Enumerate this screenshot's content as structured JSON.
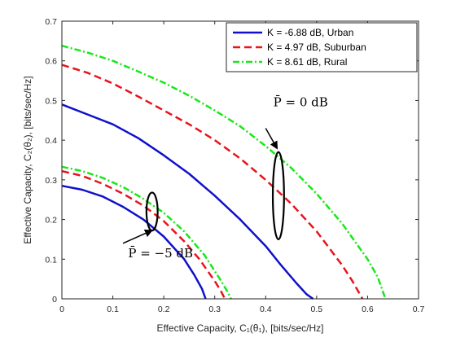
{
  "chart_data": {
    "type": "line",
    "xlabel": "Effective Capacity, C₁(θ₁),  [bits/sec/Hz]",
    "ylabel": "Effective Capacity, C₂(θ₂),  [bits/sec/Hz]",
    "xlim": [
      0,
      0.7
    ],
    "ylim": [
      0,
      0.7
    ],
    "xticks": [
      "0",
      "0.1",
      "0.2",
      "0.3",
      "0.4",
      "0.5",
      "0.6",
      "0.7"
    ],
    "yticks": [
      "0",
      "0.1",
      "0.2",
      "0.3",
      "0.4",
      "0.5",
      "0.6",
      "0.7"
    ],
    "grid": false,
    "legend_position": "top-right",
    "series": [
      {
        "name": "K = -6.88 dB, Urban",
        "color": "#1010cc",
        "style": "solid",
        "curves": [
          {
            "x": [
              0,
              0.04,
              0.08,
              0.12,
              0.16,
              0.2,
              0.24,
              0.26,
              0.275,
              0.282
            ],
            "y": [
              0.285,
              0.275,
              0.258,
              0.232,
              0.2,
              0.157,
              0.1,
              0.06,
              0.025,
              0.0
            ]
          },
          {
            "x": [
              0,
              0.05,
              0.1,
              0.15,
              0.2,
              0.25,
              0.3,
              0.35,
              0.4,
              0.43,
              0.46,
              0.48,
              0.493
            ],
            "y": [
              0.49,
              0.465,
              0.44,
              0.405,
              0.362,
              0.315,
              0.26,
              0.2,
              0.133,
              0.085,
              0.04,
              0.012,
              0.0
            ]
          }
        ]
      },
      {
        "name": "K = 4.97 dB, Suburban",
        "color": "#e8141c",
        "style": "dashed",
        "curves": [
          {
            "x": [
              0,
              0.04,
              0.08,
              0.12,
              0.16,
              0.2,
              0.24,
              0.27,
              0.3,
              0.312,
              0.32
            ],
            "y": [
              0.322,
              0.31,
              0.29,
              0.265,
              0.235,
              0.196,
              0.145,
              0.1,
              0.045,
              0.02,
              0.0
            ]
          },
          {
            "x": [
              0,
              0.05,
              0.1,
              0.15,
              0.2,
              0.25,
              0.3,
              0.35,
              0.4,
              0.45,
              0.5,
              0.55,
              0.57,
              0.59
            ],
            "y": [
              0.59,
              0.57,
              0.543,
              0.51,
              0.475,
              0.44,
              0.4,
              0.354,
              0.3,
              0.24,
              0.17,
              0.085,
              0.045,
              0.0
            ]
          }
        ]
      },
      {
        "name": "K = 8.61 dB, Rural",
        "color": "#18e818",
        "style": "dashdot",
        "curves": [
          {
            "x": [
              0,
              0.04,
              0.08,
              0.12,
              0.16,
              0.2,
              0.24,
              0.28,
              0.31,
              0.325,
              0.332
            ],
            "y": [
              0.333,
              0.322,
              0.305,
              0.282,
              0.252,
              0.217,
              0.17,
              0.11,
              0.05,
              0.018,
              0.0
            ]
          },
          {
            "x": [
              0,
              0.05,
              0.1,
              0.15,
              0.2,
              0.25,
              0.3,
              0.35,
              0.4,
              0.45,
              0.5,
              0.55,
              0.6,
              0.62,
              0.635
            ],
            "y": [
              0.638,
              0.621,
              0.6,
              0.573,
              0.545,
              0.512,
              0.475,
              0.435,
              0.385,
              0.33,
              0.265,
              0.19,
              0.1,
              0.055,
              0.0
            ]
          }
        ]
      }
    ],
    "annotations": [
      {
        "label": "P̄ = 0 dB",
        "ellipse_center": [
          0.425,
          0.26
        ],
        "ellipse_radii": [
          0.011,
          0.11
        ],
        "label_at": [
          0.415,
          0.485
        ],
        "arrow_from": [
          0.4,
          0.43
        ],
        "arrow_to": [
          0.422,
          0.38
        ]
      },
      {
        "label": "P̄ = −5 dB",
        "ellipse_center": [
          0.177,
          0.22
        ],
        "ellipse_radii": [
          0.011,
          0.048
        ],
        "label_at": [
          0.13,
          0.105
        ],
        "arrow_from": [
          0.12,
          0.14
        ],
        "arrow_to": [
          0.176,
          0.172
        ]
      }
    ]
  }
}
